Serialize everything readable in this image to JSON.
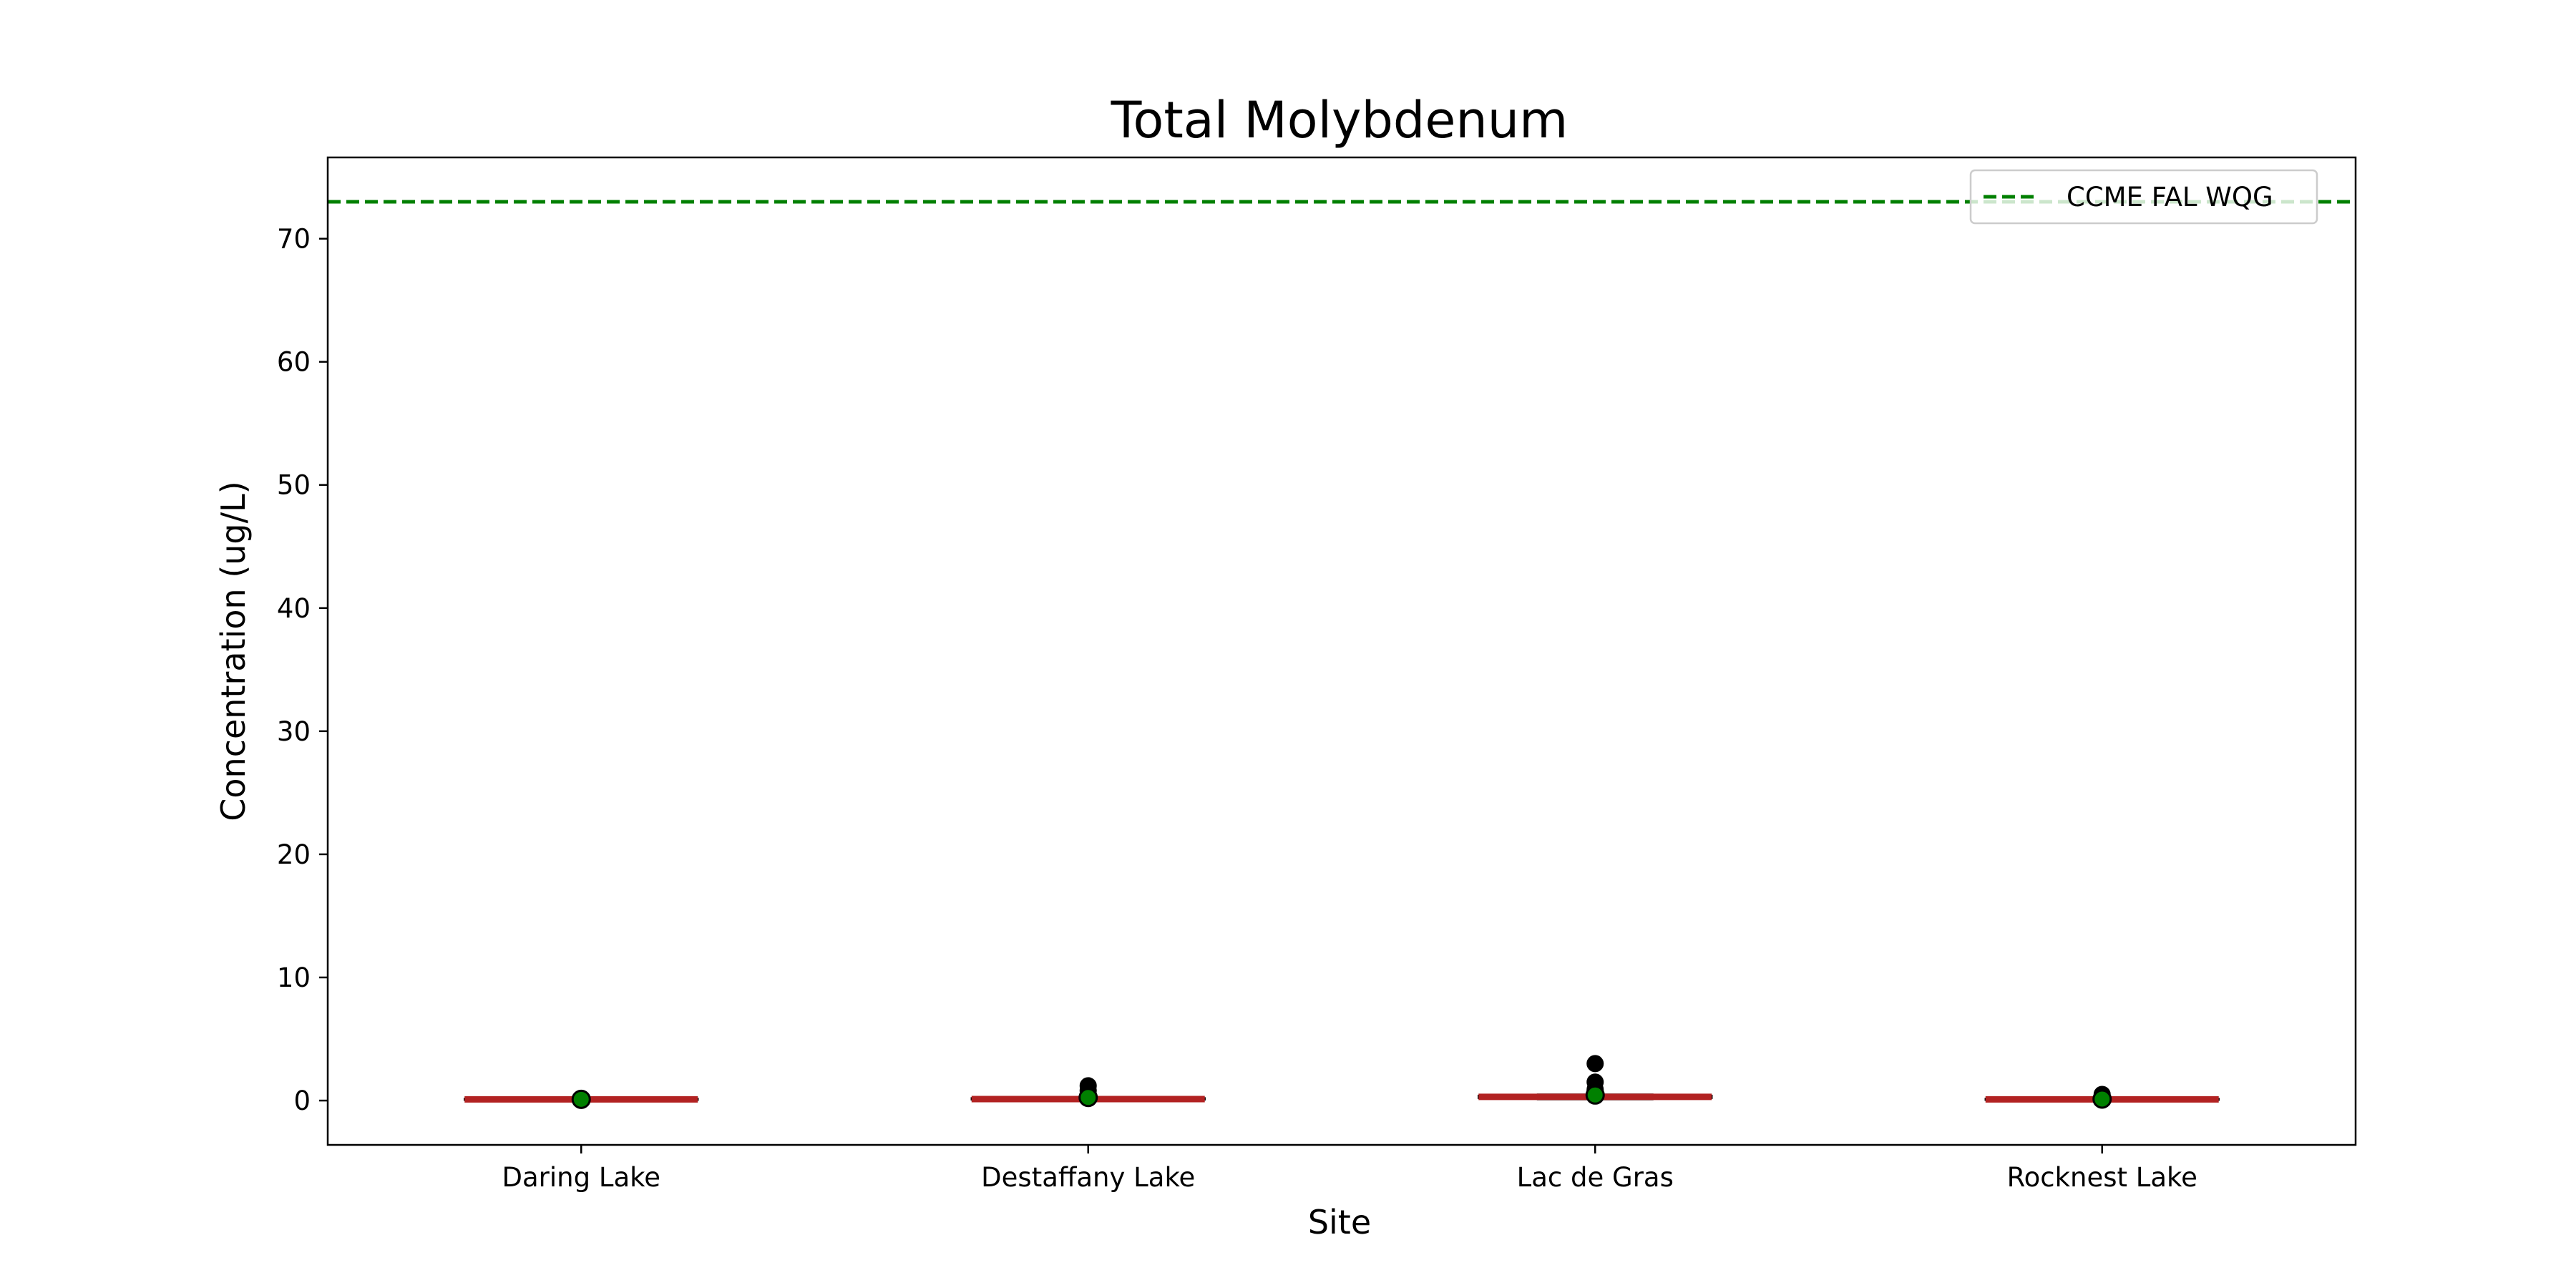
{
  "chart_data": {
    "type": "box",
    "title": "Total Molybdenum",
    "xlabel": "Site",
    "ylabel": "Concentration (ug/L)",
    "categories": [
      "Daring Lake",
      "Destaffany Lake",
      "Lac de Gras",
      "Rocknest Lake"
    ],
    "ylim": [
      -3.6,
      76.6
    ],
    "yticks": [
      0,
      10,
      20,
      30,
      40,
      50,
      60,
      70
    ],
    "grid": false,
    "legend": {
      "position": "top-right",
      "entries": [
        "CCME FAL WQG"
      ]
    },
    "guideline": {
      "name": "CCME FAL WQG",
      "value": 73,
      "color": "#008000",
      "style": "dashed"
    },
    "boxes": [
      {
        "category": "Daring Lake",
        "q1": 0.05,
        "median": 0.1,
        "q3": 0.15,
        "whisker_low": 0.02,
        "whisker_high": 0.2,
        "mean": 0.1,
        "outliers": []
      },
      {
        "category": "Destaffany Lake",
        "q1": 0.08,
        "median": 0.12,
        "q3": 0.2,
        "whisker_low": 0.05,
        "whisker_high": 0.3,
        "mean": 0.25,
        "outliers": [
          0.5,
          0.8,
          1.2
        ]
      },
      {
        "category": "Lac de Gras",
        "q1": 0.2,
        "median": 0.3,
        "q3": 0.4,
        "whisker_low": 0.1,
        "whisker_high": 0.5,
        "mean": 0.45,
        "outliers": [
          0.9,
          1.5,
          3.0
        ]
      },
      {
        "category": "Rocknest Lake",
        "q1": 0.05,
        "median": 0.1,
        "q3": 0.15,
        "whisker_low": 0.03,
        "whisker_high": 0.2,
        "mean": 0.12,
        "outliers": [
          0.3,
          0.5
        ]
      }
    ],
    "colors": {
      "median": "#b22222",
      "mean_fill": "#008000",
      "outlier": "#000000",
      "axes": "#000000"
    }
  }
}
